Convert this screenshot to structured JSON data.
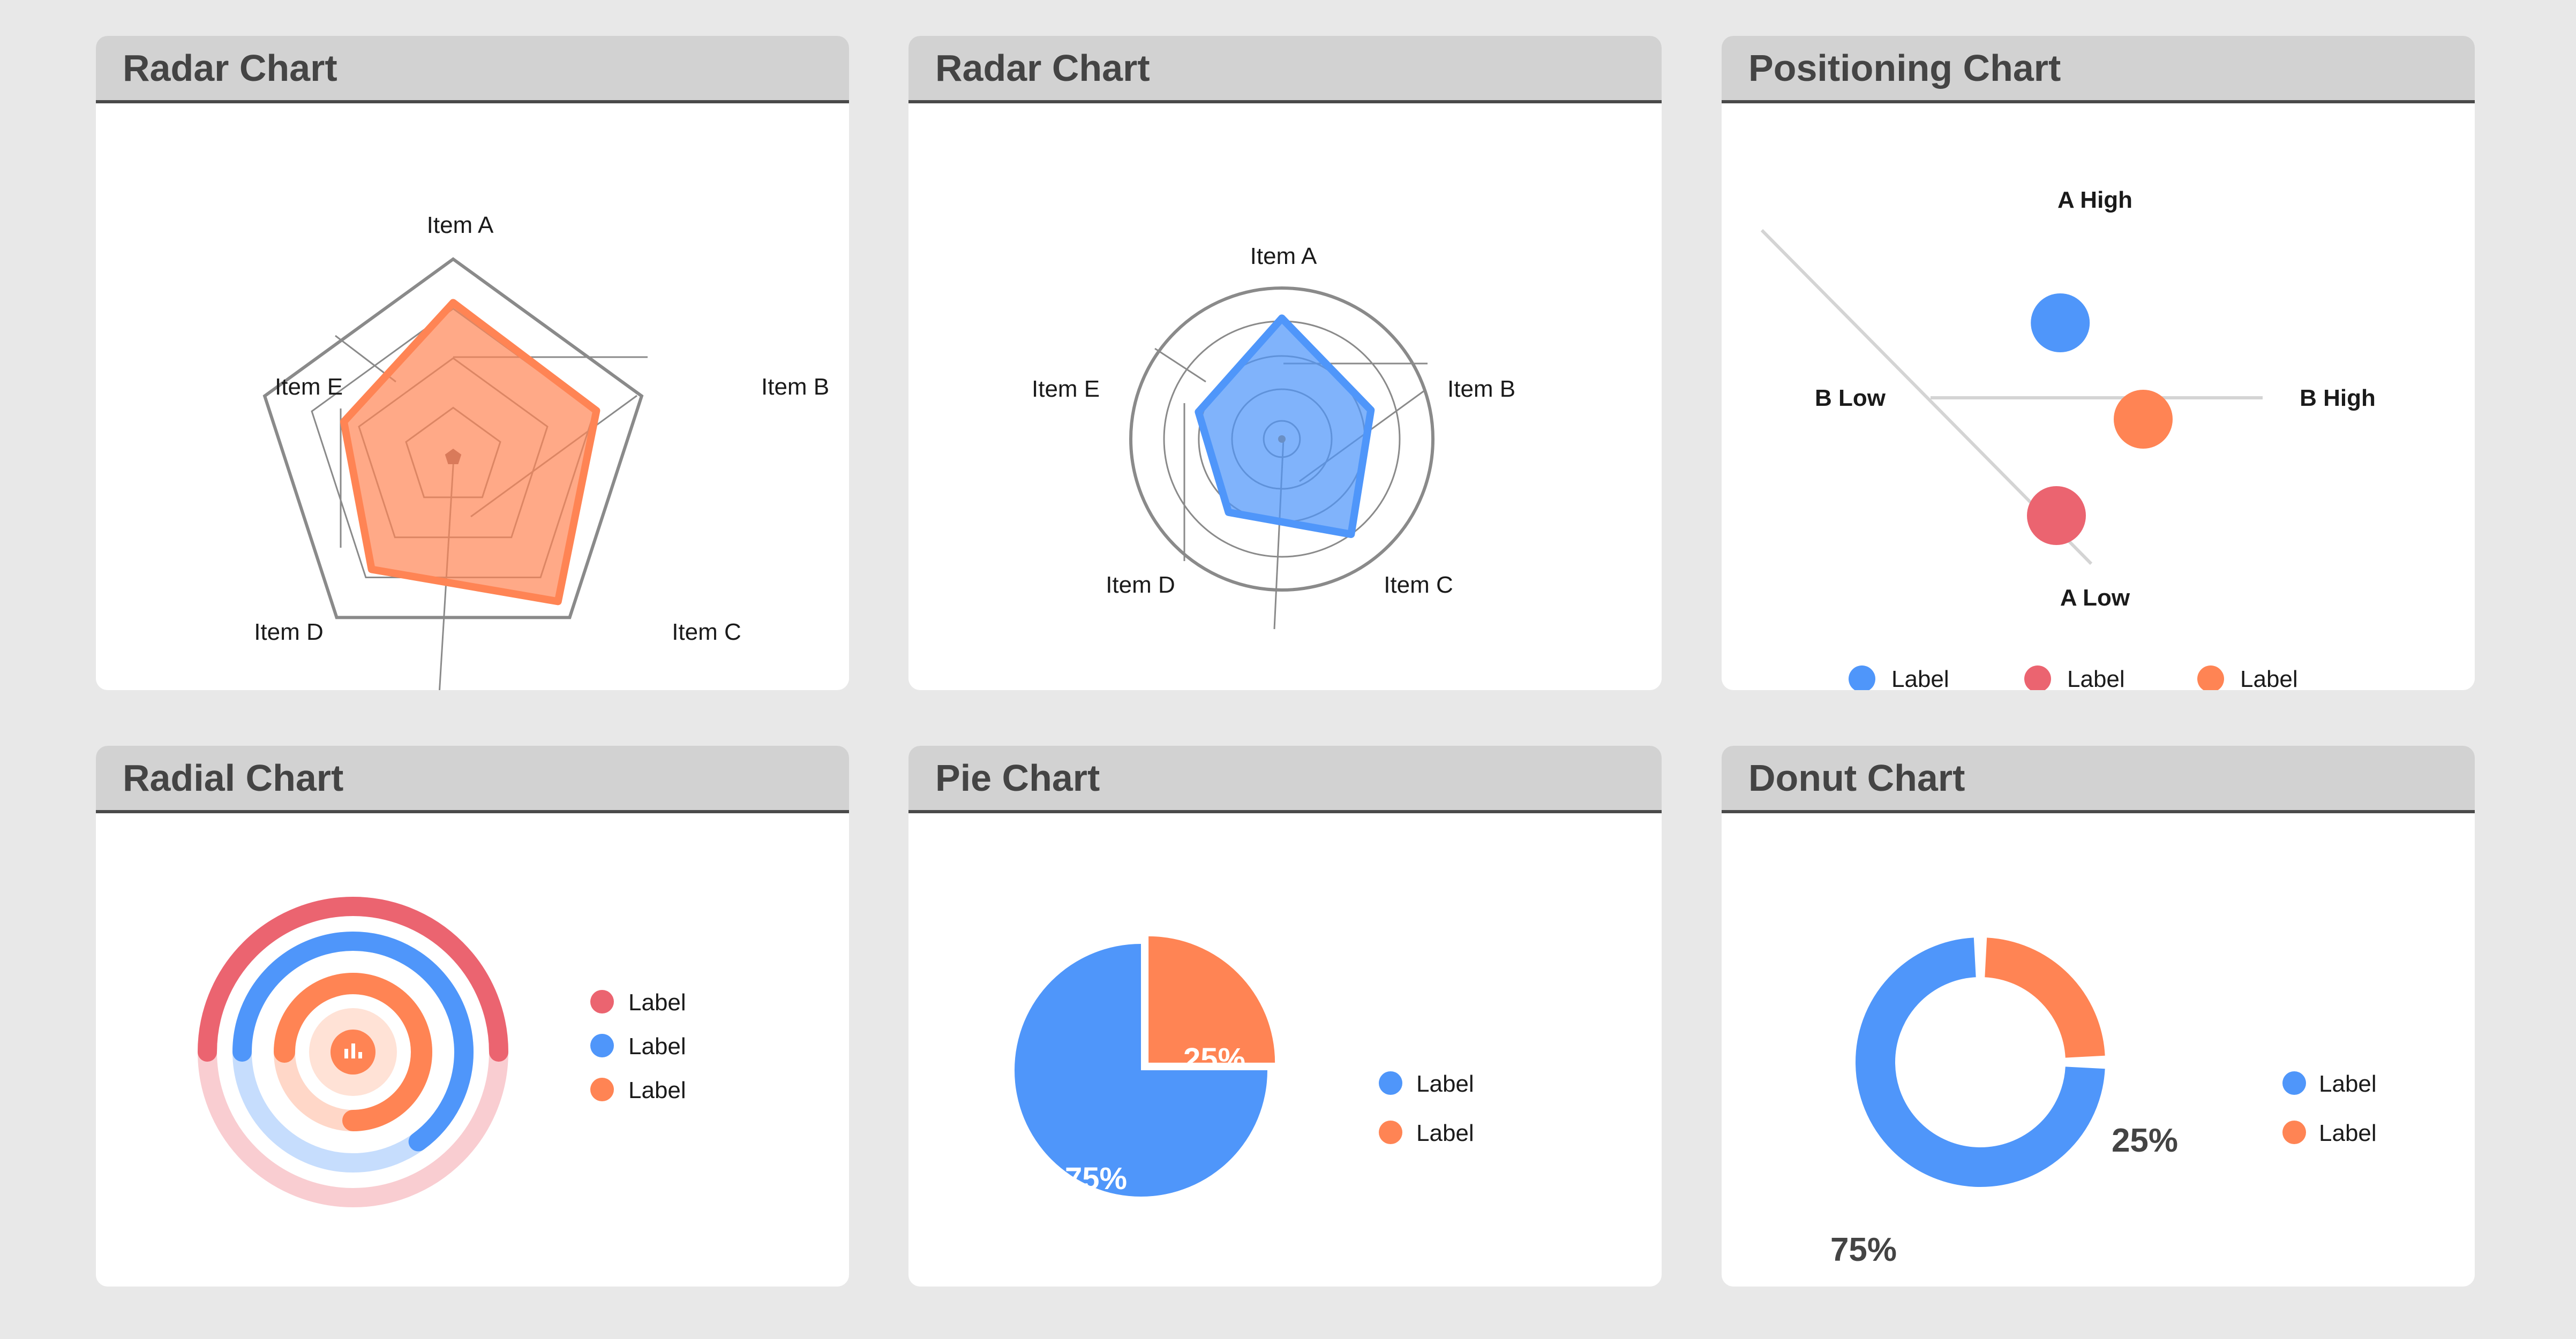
{
  "colors": {
    "orange": "#ff8454",
    "blue": "#4f96fa",
    "red": "#eb6470",
    "grid": "#8a8a8a",
    "text": "#1a1a1a"
  },
  "cards": [
    {
      "title": "Radar Chart"
    },
    {
      "title": "Radar Chart"
    },
    {
      "title": "Positioning Chart"
    },
    {
      "title": "Radial Chart"
    },
    {
      "title": "Pie Chart"
    },
    {
      "title": "Donut Chart"
    }
  ],
  "chart_data": [
    {
      "type": "radar",
      "title": "Radar Chart",
      "axes": [
        "Item A",
        "Item B",
        "Item C",
        "Item D",
        "Item E"
      ],
      "series": [
        {
          "color": "#ff8454",
          "values": [
            0.78,
            0.76,
            0.9,
            0.7,
            0.58
          ]
        }
      ]
    },
    {
      "type": "radar",
      "title": "Radar Chart",
      "axes": [
        "Item A",
        "Item B",
        "Item C",
        "Item D",
        "Item E"
      ],
      "series": [
        {
          "color": "#4f96fa",
          "values": [
            0.8,
            0.62,
            0.78,
            0.6,
            0.58
          ]
        }
      ]
    },
    {
      "type": "scatter",
      "title": "Positioning Chart",
      "axis_labels": {
        "y_high": "A High",
        "y_low": "A Low",
        "x_low": "B Low",
        "x_high": "B High"
      },
      "series": [
        {
          "name": "Label",
          "color": "#4f96fa",
          "x": -0.18,
          "y": 0.35
        },
        {
          "name": "Label",
          "color": "#eb6470",
          "x": -0.2,
          "y": -0.55
        },
        {
          "name": "Label",
          "color": "#ff8454",
          "x": 0.25,
          "y": -0.1
        }
      ],
      "legend": [
        "Label",
        "Label",
        "Label"
      ]
    },
    {
      "type": "radial",
      "title": "Radial Chart",
      "series": [
        {
          "name": "Label",
          "color": "#eb6470",
          "value": 0.5
        },
        {
          "name": "Label",
          "color": "#4f96fa",
          "value": 0.65
        },
        {
          "name": "Label",
          "color": "#ff8454",
          "value": 0.75
        }
      ],
      "center_icon": "bar-chart-icon"
    },
    {
      "type": "pie",
      "title": "Pie Chart",
      "series": [
        {
          "name": "Label",
          "color": "#4f96fa",
          "value": 75,
          "label": "75%"
        },
        {
          "name": "Label",
          "color": "#ff8454",
          "value": 25,
          "label": "25%"
        }
      ]
    },
    {
      "type": "donut",
      "title": "Donut Chart",
      "series": [
        {
          "name": "Label",
          "color": "#4f96fa",
          "value": 75,
          "label": "75%"
        },
        {
          "name": "Label",
          "color": "#ff8454",
          "value": 25,
          "label": "25%"
        }
      ]
    }
  ]
}
